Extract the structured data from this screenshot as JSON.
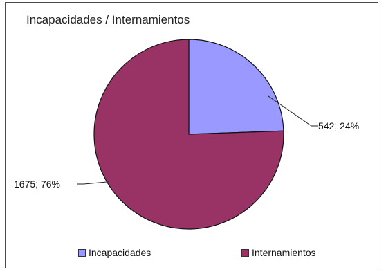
{
  "chart_data": {
    "type": "pie",
    "title": "Incapacidades / Internamientos",
    "categories": [
      "Incapacidades",
      "Internamientos"
    ],
    "values": [
      542,
      1675
    ],
    "percentages": [
      24,
      76
    ],
    "data_labels": [
      "542; 24%",
      "1675; 76%"
    ],
    "colors": [
      "#9999ff",
      "#993366"
    ],
    "legend_placement": "bottom"
  }
}
